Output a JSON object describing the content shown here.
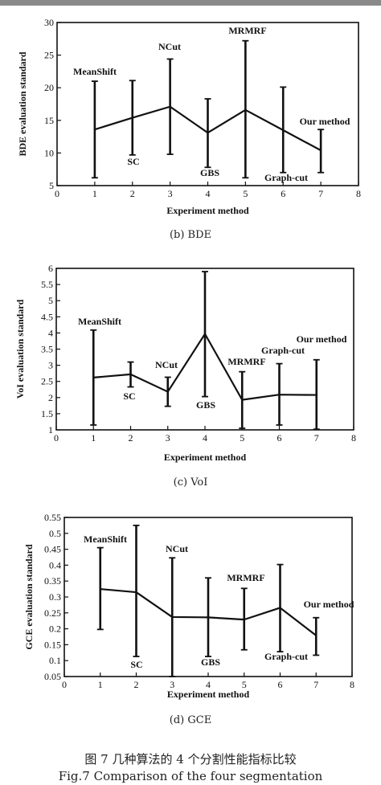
{
  "chart_data": [
    {
      "type": "line",
      "caption": "(b) BDE",
      "xlabel": "Experiment method",
      "ylabel": "BDE evaluation standard",
      "xlim": [
        0,
        8
      ],
      "ylim": [
        5,
        30
      ],
      "xticks": [
        "0",
        "1",
        "2",
        "3",
        "4",
        "5",
        "6",
        "7",
        "8"
      ],
      "yticks": [
        "5",
        "10",
        "15",
        "20",
        "25",
        "30"
      ],
      "grid": false,
      "series": [
        {
          "x": [
            1,
            2,
            3,
            4,
            5,
            6,
            7
          ],
          "y": [
            13.6,
            15.4,
            17.1,
            13.1,
            16.6,
            13.5,
            10.4
          ],
          "err_low": [
            6.2,
            9.7,
            9.8,
            7.8,
            6.2,
            7.0,
            7.0
          ],
          "err_high": [
            21.0,
            21.1,
            24.4,
            18.3,
            27.2,
            20.1,
            13.6
          ]
        }
      ],
      "annotations": [
        "MeanShift",
        "SC",
        "NCut",
        "GBS",
        "MRMRF",
        "Graph-cut",
        "Our method"
      ]
    },
    {
      "type": "line",
      "caption": "(c) VoI",
      "xlabel": "Experiment method",
      "ylabel": "VoI evaluation standard",
      "xlim": [
        0,
        8
      ],
      "ylim": [
        1,
        6
      ],
      "xticks": [
        "0",
        "1",
        "2",
        "3",
        "4",
        "5",
        "6",
        "7",
        "8"
      ],
      "yticks": [
        "1",
        "1.5",
        "2",
        "2.5",
        "3",
        "3.5",
        "4",
        "4.5",
        "5",
        "5.5",
        "6"
      ],
      "grid": false,
      "series": [
        {
          "x": [
            1,
            2,
            3,
            4,
            5,
            6,
            7
          ],
          "y": [
            2.62,
            2.72,
            2.18,
            3.97,
            1.93,
            2.09,
            2.08
          ],
          "err_low": [
            1.15,
            2.33,
            1.73,
            2.03,
            1.05,
            1.15,
            1.02
          ],
          "err_high": [
            4.09,
            3.1,
            2.63,
            5.9,
            2.8,
            3.05,
            3.17
          ]
        }
      ],
      "annotations": [
        "MeanShift",
        "SC",
        "NCut",
        "GBS",
        "MRMRF",
        "Graph-cut",
        "Our method"
      ]
    },
    {
      "type": "line",
      "caption": "(d) GCE",
      "xlabel": "Experiment method",
      "ylabel": "GCE evaluation standard",
      "xlim": [
        0,
        8
      ],
      "ylim": [
        0.05,
        0.55
      ],
      "xticks": [
        "0",
        "1",
        "2",
        "3",
        "4",
        "5",
        "6",
        "7",
        "8"
      ],
      "yticks": [
        "0.05",
        "0.1",
        "0.15",
        "0.2",
        "0.25",
        "0.3",
        "0.35",
        "0.4",
        "0.45",
        "0.5",
        "0.55"
      ],
      "grid": false,
      "series": [
        {
          "x": [
            1,
            2,
            3,
            4,
            5,
            6,
            7
          ],
          "y": [
            0.325,
            0.315,
            0.237,
            0.236,
            0.229,
            0.266,
            0.179
          ],
          "err_low": [
            0.198,
            0.113,
            0.05,
            0.113,
            0.134,
            0.128,
            0.117
          ],
          "err_high": [
            0.455,
            0.525,
            0.423,
            0.36,
            0.327,
            0.402,
            0.235
          ]
        }
      ],
      "annotations": [
        "MeanShift",
        "SC",
        "NCut",
        "GBS",
        "MRMRF",
        "Graph-cut",
        "Our method"
      ]
    }
  ],
  "figure_caption": {
    "line1": "图 7   几种算法的 4 个分割性能指标比较",
    "line2": "Fig.7   Comparison of the four segmentation"
  }
}
